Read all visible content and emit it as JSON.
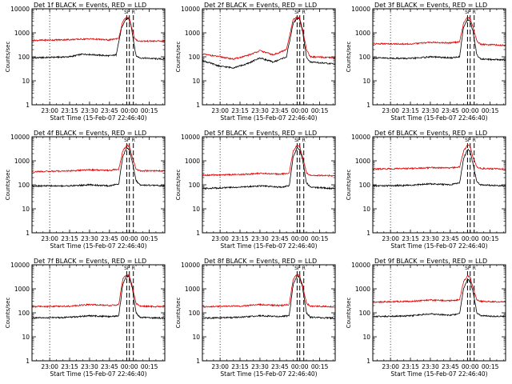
{
  "figure": {
    "colors": {
      "events": "#000000",
      "lld": "#e00000",
      "background": "#ffffff"
    },
    "panel_titles": [
      "Det 1f BLACK = Events, RED = LLD",
      "Det 2f BLACK = Events, RED = LLD",
      "Det 3f BLACK = Events, RED = LLD",
      "Det 4f BLACK = Events, RED = LLD",
      "Det 5f BLACK = Events, RED = LLD",
      "Det 6f BLACK = Events, RED = LLD",
      "Det 7f BLACK = Events, RED = LLD",
      "Det 8f BLACK = Events, RED = LLD",
      "Det 9f BLACK = Events, RED = LLD"
    ],
    "xlabel": "Start Time (15-Feb-07 22:46:40)",
    "ylabel": "Counts/sec",
    "marker_labels": [
      "SF",
      "R"
    ]
  },
  "chart_data": [
    {
      "type": "line",
      "title": "Det 1f BLACK = Events, RED = LLD",
      "xlabel": "Start Time (15-Feb-07 22:46:40)",
      "ylabel": "Counts/sec",
      "yscale": "log",
      "xlim": [
        "22:46:40",
        "00:26:40"
      ],
      "ylim": [
        1,
        10000
      ],
      "xticks": [
        "23:00",
        "23:15",
        "23:30",
        "23:45",
        "00:00",
        "00:15"
      ],
      "yticks": [
        "1",
        "10",
        "100",
        "1000",
        "10000"
      ],
      "grid": false,
      "series": [
        {
          "name": "Events",
          "x": [
            "22:46:40",
            "23:15",
            "23:25",
            "23:45",
            "23:50",
            "23:54",
            "23:57",
            "23:59",
            "00:01",
            "00:03",
            "00:05",
            "00:08",
            "00:26"
          ],
          "y": [
            90,
            100,
            130,
            110,
            120,
            1500,
            3500,
            4000,
            2500,
            500,
            110,
            90,
            80
          ]
        },
        {
          "name": "LLD",
          "x": [
            "22:46:40",
            "23:15",
            "23:30",
            "23:45",
            "23:52",
            "23:55",
            "23:58",
            "00:00",
            "00:02",
            "00:04",
            "00:07",
            "00:26"
          ],
          "y": [
            480,
            520,
            560,
            500,
            600,
            3000,
            4500,
            4000,
            1500,
            550,
            450,
            450
          ]
        }
      ],
      "markers": {
        "vertical_dotted": [
          "23:00"
        ],
        "vertical_dashed": [
          "23:58",
          "00:00",
          "00:03"
        ]
      }
    },
    {
      "type": "line",
      "title": "Det 2f BLACK = Events, RED = LLD",
      "xlabel": "Start Time (15-Feb-07 22:46:40)",
      "ylabel": "Counts/sec",
      "yscale": "log",
      "xlim": [
        "22:46:40",
        "00:26:40"
      ],
      "ylim": [
        1,
        10000
      ],
      "xticks": [
        "23:00",
        "23:15",
        "23:30",
        "23:45",
        "00:00",
        "00:15"
      ],
      "yticks": [
        "1",
        "10",
        "100",
        "1000",
        "10000"
      ],
      "grid": false,
      "series": [
        {
          "name": "Events",
          "x": [
            "22:46:40",
            "23:00",
            "23:10",
            "23:20",
            "23:30",
            "23:40",
            "23:50",
            "23:55",
            "23:58",
            "00:00",
            "00:02",
            "00:05",
            "00:08",
            "00:26"
          ],
          "y": [
            70,
            40,
            35,
            50,
            90,
            60,
            100,
            2500,
            4000,
            3500,
            1200,
            100,
            60,
            50
          ]
        },
        {
          "name": "LLD",
          "x": [
            "22:46:40",
            "23:00",
            "23:10",
            "23:20",
            "23:30",
            "23:40",
            "23:50",
            "23:55",
            "23:58",
            "00:00",
            "00:02",
            "00:05",
            "00:08",
            "00:26"
          ],
          "y": [
            130,
            100,
            80,
            110,
            180,
            120,
            200,
            3500,
            4500,
            4000,
            1500,
            200,
            100,
            90
          ]
        }
      ],
      "markers": {
        "vertical_dotted": [
          "23:00"
        ],
        "vertical_dashed": [
          "23:58",
          "00:00",
          "00:03"
        ]
      }
    },
    {
      "type": "line",
      "title": "Det 3f BLACK = Events, RED = LLD",
      "xlabel": "Start Time (15-Feb-07 22:46:40)",
      "ylabel": "Counts/sec",
      "yscale": "log",
      "xlim": [
        "22:46:40",
        "00:26:40"
      ],
      "ylim": [
        1,
        10000
      ],
      "xticks": [
        "23:00",
        "23:15",
        "23:30",
        "23:45",
        "00:00",
        "00:15"
      ],
      "yticks": [
        "1",
        "10",
        "100",
        "1000",
        "10000"
      ],
      "grid": false,
      "series": [
        {
          "name": "Events",
          "x": [
            "22:46:40",
            "23:15",
            "23:30",
            "23:45",
            "23:52",
            "23:55",
            "23:58",
            "00:00",
            "00:02",
            "00:05",
            "00:08",
            "00:26"
          ],
          "y": [
            90,
            85,
            100,
            90,
            100,
            1800,
            3500,
            3000,
            1200,
            120,
            80,
            75
          ]
        },
        {
          "name": "LLD",
          "x": [
            "22:46:40",
            "23:15",
            "23:30",
            "23:45",
            "23:52",
            "23:55",
            "23:58",
            "00:00",
            "00:02",
            "00:05",
            "00:08",
            "00:26"
          ],
          "y": [
            350,
            340,
            400,
            380,
            420,
            2500,
            4500,
            4000,
            1800,
            450,
            330,
            300
          ]
        }
      ],
      "markers": {
        "vertical_dotted": [
          "23:00"
        ],
        "vertical_dashed": [
          "23:58",
          "00:00",
          "00:03"
        ]
      }
    },
    {
      "type": "line",
      "title": "Det 4f BLACK = Events, RED = LLD",
      "xlabel": "Start Time (15-Feb-07 22:46:40)",
      "ylabel": "Counts/sec",
      "yscale": "log",
      "xlim": [
        "22:46:40",
        "00:26:40"
      ],
      "ylim": [
        1,
        10000
      ],
      "xticks": [
        "23:00",
        "23:15",
        "23:30",
        "23:45",
        "00:00",
        "00:15"
      ],
      "yticks": [
        "1",
        "10",
        "100",
        "1000",
        "10000"
      ],
      "grid": false,
      "series": [
        {
          "name": "Events",
          "x": [
            "22:46:40",
            "23:15",
            "23:30",
            "23:45",
            "23:52",
            "23:55",
            "23:58",
            "00:00",
            "00:02",
            "00:05",
            "00:08",
            "00:26"
          ],
          "y": [
            90,
            90,
            100,
            90,
            110,
            1500,
            3500,
            3000,
            1000,
            150,
            100,
            90
          ]
        },
        {
          "name": "LLD",
          "x": [
            "22:46:40",
            "23:15",
            "23:30",
            "23:45",
            "23:52",
            "23:55",
            "23:58",
            "00:00",
            "00:02",
            "00:05",
            "00:08",
            "00:26"
          ],
          "y": [
            350,
            380,
            420,
            400,
            450,
            2500,
            4500,
            4000,
            1500,
            450,
            380,
            380
          ]
        }
      ],
      "markers": {
        "vertical_dotted": [
          "23:00"
        ],
        "vertical_dashed": [
          "23:58",
          "00:00",
          "00:03"
        ]
      }
    },
    {
      "type": "line",
      "title": "Det 5f BLACK = Events, RED = LLD",
      "xlabel": "Start Time (15-Feb-07 22:46:40)",
      "ylabel": "Counts/sec",
      "yscale": "log",
      "xlim": [
        "22:46:40",
        "00:26:40"
      ],
      "ylim": [
        1,
        10000
      ],
      "xticks": [
        "23:00",
        "23:15",
        "23:30",
        "23:45",
        "00:00",
        "00:15"
      ],
      "yticks": [
        "1",
        "10",
        "100",
        "1000",
        "10000"
      ],
      "grid": false,
      "series": [
        {
          "name": "Events",
          "x": [
            "22:46:40",
            "23:15",
            "23:30",
            "23:45",
            "23:52",
            "23:55",
            "23:58",
            "00:00",
            "00:02",
            "00:05",
            "00:08",
            "00:26"
          ],
          "y": [
            70,
            80,
            90,
            80,
            90,
            1500,
            3500,
            3000,
            1200,
            120,
            80,
            70
          ]
        },
        {
          "name": "LLD",
          "x": [
            "22:46:40",
            "23:15",
            "23:30",
            "23:45",
            "23:52",
            "23:55",
            "23:58",
            "00:00",
            "00:02",
            "00:05",
            "00:08",
            "00:26"
          ],
          "y": [
            250,
            270,
            300,
            280,
            300,
            2500,
            4500,
            4000,
            1500,
            320,
            250,
            240
          ]
        }
      ],
      "markers": {
        "vertical_dotted": [
          "23:00"
        ],
        "vertical_dashed": [
          "23:58",
          "00:00",
          "00:03"
        ]
      }
    },
    {
      "type": "line",
      "title": "Det 6f BLACK = Events, RED = LLD",
      "xlabel": "Start Time (15-Feb-07 22:46:40)",
      "ylabel": "Counts/sec",
      "yscale": "log",
      "xlim": [
        "22:46:40",
        "00:26:40"
      ],
      "ylim": [
        1,
        10000
      ],
      "xticks": [
        "23:00",
        "23:15",
        "23:30",
        "23:45",
        "00:00",
        "00:15"
      ],
      "yticks": [
        "1",
        "10",
        "100",
        "1000",
        "10000"
      ],
      "grid": false,
      "series": [
        {
          "name": "Events",
          "x": [
            "22:46:40",
            "23:15",
            "23:30",
            "23:45",
            "23:52",
            "23:55",
            "23:58",
            "00:00",
            "00:02",
            "00:05",
            "00:08",
            "00:26"
          ],
          "y": [
            90,
            95,
            110,
            100,
            120,
            1200,
            3000,
            2500,
            800,
            130,
            100,
            90
          ]
        },
        {
          "name": "LLD",
          "x": [
            "22:46:40",
            "23:15",
            "23:30",
            "23:45",
            "23:52",
            "23:55",
            "23:58",
            "00:00",
            "00:02",
            "00:05",
            "00:08",
            "00:26"
          ],
          "y": [
            450,
            480,
            520,
            500,
            550,
            2500,
            4500,
            4000,
            1500,
            550,
            480,
            450
          ]
        }
      ],
      "markers": {
        "vertical_dotted": [
          "23:00"
        ],
        "vertical_dashed": [
          "23:58",
          "00:00",
          "00:03"
        ]
      }
    },
    {
      "type": "line",
      "title": "Det 7f BLACK = Events, RED = LLD",
      "xlabel": "Start Time (15-Feb-07 22:46:40)",
      "ylabel": "Counts/sec",
      "yscale": "log",
      "xlim": [
        "22:46:40",
        "00:26:40"
      ],
      "ylim": [
        1,
        10000
      ],
      "xticks": [
        "23:00",
        "23:15",
        "23:30",
        "23:45",
        "00:00",
        "00:15"
      ],
      "yticks": [
        "1",
        "10",
        "100",
        "1000",
        "10000"
      ],
      "grid": false,
      "series": [
        {
          "name": "Events",
          "x": [
            "22:46:40",
            "23:15",
            "23:30",
            "23:45",
            "23:52",
            "23:55",
            "23:58",
            "00:00",
            "00:02",
            "00:05",
            "00:08",
            "00:26"
          ],
          "y": [
            60,
            65,
            75,
            70,
            75,
            1500,
            3500,
            3000,
            1200,
            100,
            65,
            60
          ]
        },
        {
          "name": "LLD",
          "x": [
            "22:46:40",
            "23:15",
            "23:30",
            "23:45",
            "23:52",
            "23:55",
            "23:58",
            "00:00",
            "00:02",
            "00:05",
            "00:08",
            "00:26"
          ],
          "y": [
            180,
            190,
            220,
            200,
            220,
            2500,
            4000,
            3500,
            1400,
            250,
            190,
            180
          ]
        }
      ],
      "markers": {
        "vertical_dotted": [
          "23:00"
        ],
        "vertical_dashed": [
          "23:58",
          "00:00",
          "00:03"
        ]
      }
    },
    {
      "type": "line",
      "title": "Det 8f BLACK = Events, RED = LLD",
      "xlabel": "Start Time (15-Feb-07 22:46:40)",
      "ylabel": "Counts/sec",
      "yscale": "log",
      "xlim": [
        "22:46:40",
        "00:26:40"
      ],
      "ylim": [
        1,
        10000
      ],
      "xticks": [
        "23:00",
        "23:15",
        "23:30",
        "23:45",
        "00:00",
        "00:15"
      ],
      "yticks": [
        "1",
        "10",
        "100",
        "1000",
        "10000"
      ],
      "grid": false,
      "series": [
        {
          "name": "Events",
          "x": [
            "22:46:40",
            "23:15",
            "23:30",
            "23:45",
            "23:52",
            "23:55",
            "23:58",
            "00:00",
            "00:02",
            "00:05",
            "00:08",
            "00:26"
          ],
          "y": [
            60,
            65,
            75,
            70,
            75,
            1500,
            3500,
            3000,
            1200,
            100,
            65,
            60
          ]
        },
        {
          "name": "LLD",
          "x": [
            "22:46:40",
            "23:15",
            "23:30",
            "23:45",
            "23:52",
            "23:55",
            "23:58",
            "00:00",
            "00:02",
            "00:05",
            "00:08",
            "00:26"
          ],
          "y": [
            180,
            190,
            220,
            200,
            220,
            2500,
            4000,
            3500,
            1400,
            250,
            190,
            180
          ]
        }
      ],
      "markers": {
        "vertical_dotted": [
          "23:00"
        ],
        "vertical_dashed": [
          "23:58",
          "00:00",
          "00:03"
        ]
      }
    },
    {
      "type": "line",
      "title": "Det 9f BLACK = Events, RED = LLD",
      "xlabel": "Start Time (15-Feb-07 22:46:40)",
      "ylabel": "Counts/sec",
      "yscale": "log",
      "xlim": [
        "22:46:40",
        "00:26:40"
      ],
      "ylim": [
        1,
        10000
      ],
      "xticks": [
        "23:00",
        "23:15",
        "23:30",
        "23:45",
        "00:00",
        "00:15"
      ],
      "yticks": [
        "1",
        "10",
        "100",
        "1000",
        "10000"
      ],
      "grid": false,
      "series": [
        {
          "name": "Events",
          "x": [
            "22:46:40",
            "23:15",
            "23:30",
            "23:45",
            "23:52",
            "23:55",
            "23:58",
            "00:00",
            "00:02",
            "00:05",
            "00:08",
            "00:26"
          ],
          "y": [
            70,
            75,
            90,
            80,
            90,
            1000,
            2500,
            2000,
            800,
            100,
            75,
            70
          ]
        },
        {
          "name": "LLD",
          "x": [
            "22:46:40",
            "23:15",
            "23:30",
            "23:45",
            "23:52",
            "23:55",
            "23:58",
            "00:00",
            "00:02",
            "00:05",
            "00:08",
            "00:26"
          ],
          "y": [
            280,
            300,
            340,
            320,
            350,
            2000,
            3500,
            3000,
            1200,
            350,
            300,
            280
          ]
        }
      ],
      "markers": {
        "vertical_dotted": [
          "23:00"
        ],
        "vertical_dashed": [
          "23:58",
          "00:00",
          "00:03"
        ]
      }
    }
  ]
}
